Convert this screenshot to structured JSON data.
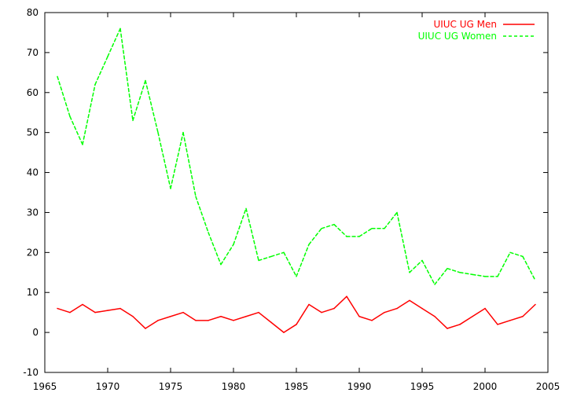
{
  "chart_data": {
    "type": "line",
    "title": "",
    "xlabel": "",
    "ylabel": "",
    "xlim": [
      1965,
      2005
    ],
    "ylim": [
      -10,
      80
    ],
    "x_ticks": [
      1965,
      1970,
      1975,
      1980,
      1985,
      1990,
      1995,
      2000,
      2005
    ],
    "y_ticks": [
      -10,
      0,
      10,
      20,
      30,
      40,
      50,
      60,
      70,
      80
    ],
    "grid": false,
    "legend_position": "top-right",
    "x": [
      1966,
      1967,
      1968,
      1969,
      1970,
      1971,
      1972,
      1973,
      1974,
      1975,
      1976,
      1977,
      1978,
      1979,
      1980,
      1981,
      1982,
      1983,
      1984,
      1985,
      1986,
      1987,
      1988,
      1989,
      1990,
      1991,
      1992,
      1993,
      1994,
      1995,
      1996,
      1997,
      1998,
      1999,
      2000,
      2001,
      2002,
      2003,
      2004
    ],
    "series": [
      {
        "name": "UIUC UG Men",
        "color": "#ff0000",
        "line_style": "solid",
        "values": [
          6,
          5,
          7,
          5,
          5.5,
          6,
          4,
          1,
          3,
          4,
          5,
          3,
          3,
          4,
          3,
          4,
          5,
          2.5,
          0,
          2,
          7,
          5,
          6,
          9,
          4,
          3,
          5,
          6,
          8,
          6,
          4,
          1,
          2,
          4,
          6,
          2,
          3,
          4,
          7
        ]
      },
      {
        "name": "UIUC UG Women",
        "color": "#00ff00",
        "line_style": "dashed",
        "values": [
          64,
          54,
          47,
          62,
          69,
          76,
          53,
          63,
          50,
          36,
          50,
          34,
          25,
          17,
          22,
          31,
          18,
          19,
          20,
          14,
          22,
          26,
          27,
          24,
          24,
          26,
          26,
          30,
          15,
          18,
          12,
          16,
          15,
          14.5,
          14,
          14,
          20,
          19,
          13
        ]
      }
    ]
  }
}
